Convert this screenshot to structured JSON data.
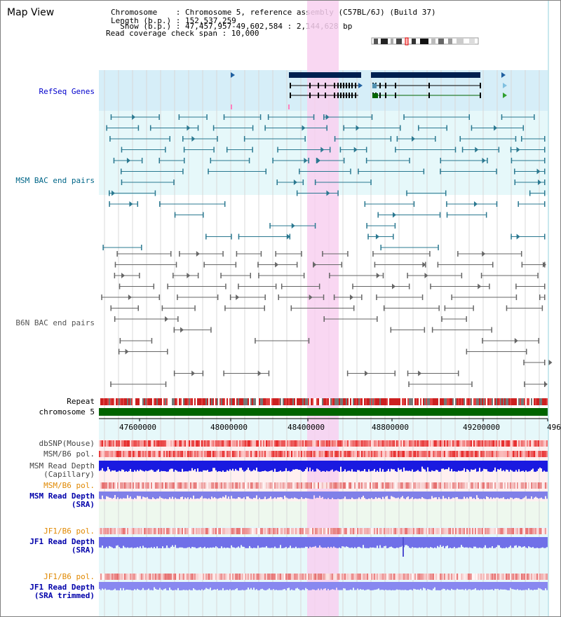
{
  "header": {
    "title": "Map View",
    "lines": [
      "Chromosome    : Chromosome 5, reference assembly (C57BL/6J) (Build 37)",
      "Length (b.p.) : 152,537,259",
      "  Show (b.p.) : 47,457,957-49,602,584 : 2,144,628 bp",
      "Read coverage check span : 10,000"
    ]
  },
  "axis": {
    "ticks": [
      "47600000",
      "48000000",
      "48400000",
      "48800000",
      "49200000",
      "496"
    ]
  },
  "labels": {
    "refseq": "RefSeq Genes",
    "msm_bac": "MSM BAC end pairs",
    "b6n_bac": "B6N BAC end pairs",
    "repeat": "Repeat",
    "chromosome": "chromosome 5",
    "dbsnp": "dbSNP(Mouse)",
    "msm_b6_pol": "MSM/B6 pol.",
    "msm_depth_cap_1": "MSM Read Depth",
    "msm_depth_cap_2": "(Capillary)",
    "msm_b6_pol_sra": "MSM/B6 pol.",
    "msm_depth_sra_1": "MSM Read Depth",
    "msm_depth_sra_2": "(SRA)",
    "jf1_b6_pol": "JF1/B6 pol.",
    "jf1_depth_sra_1": "JF1 Read Depth",
    "jf1_depth_sra_2": "(SRA)",
    "jf1_b6_pol_trim": "JF1/B6 pol.",
    "jf1_depth_trim_1": "JF1 Read Depth",
    "jf1_depth_trim_2": "(SRA trimmed)"
  },
  "colors": {
    "refseq_label": "#0000cc",
    "msm_bac_label": "#006688",
    "b6n_bac_label": "#555555",
    "orange_label": "#e08800",
    "blue_label": "#0000aa",
    "highlight": "#f8d8f4",
    "gene": "#002050",
    "chrom_bar": "#006400"
  }
}
